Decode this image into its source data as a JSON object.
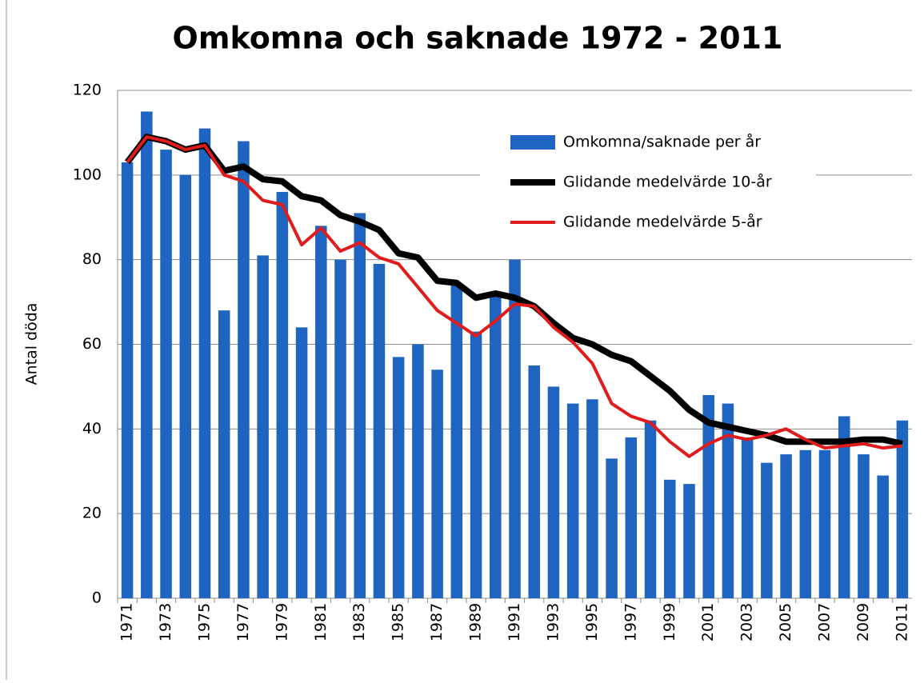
{
  "chart_data": {
    "type": "bar",
    "title": "Omkomna och saknade 1972 - 2011",
    "y_label": "Antal döda",
    "categories": [
      "1971",
      null,
      "1973",
      null,
      "1975",
      null,
      "1977",
      null,
      "1979",
      null,
      "1981",
      null,
      "1983",
      null,
      "1985",
      null,
      "1987",
      null,
      "1989",
      null,
      "1991",
      null,
      "1993",
      null,
      "1995",
      null,
      "1997",
      null,
      "1999",
      null,
      "2001",
      null,
      "2003",
      null,
      "2005",
      null,
      "2007",
      null,
      "2009",
      null,
      "2011"
    ],
    "series": [
      {
        "name": "Omkomna/saknade per år",
        "type": "bar",
        "color": "#1f64c0",
        "values": [
          103,
          115,
          106,
          100,
          111,
          68,
          108,
          81,
          96,
          64,
          88,
          80,
          91,
          79,
          57,
          60,
          54,
          74,
          63,
          72,
          80,
          55,
          50,
          46,
          47,
          33,
          38,
          42,
          28,
          27,
          48,
          46,
          38,
          32,
          34,
          35,
          35,
          43,
          34,
          29,
          42
        ]
      },
      {
        "name": "Glidande medelvärde 10-år",
        "type": "line",
        "color": "#000000",
        "values": [
          103,
          109,
          108,
          106,
          107,
          101,
          102,
          99,
          98.5,
          95,
          94,
          90.5,
          89,
          87,
          81.5,
          80.5,
          75,
          74.5,
          71,
          72,
          71,
          69,
          65,
          61.5,
          60,
          57.5,
          56,
          52.5,
          49,
          44.5,
          41.5,
          40.5,
          39.5,
          38.5,
          37,
          37,
          37,
          37,
          37.5,
          37.5,
          36.5
        ]
      },
      {
        "name": "Glidande medelvärde 5-år",
        "type": "line",
        "color": "#e01b1b",
        "values": [
          103,
          109,
          108,
          106,
          107,
          100,
          98.5,
          94,
          93,
          83.5,
          87.5,
          82,
          84,
          80.5,
          79,
          73.5,
          68,
          65,
          62,
          65.5,
          69.5,
          69,
          64,
          60.5,
          55.5,
          46,
          43,
          41.5,
          37,
          33.5,
          36.5,
          38.5,
          37.5,
          38.5,
          40,
          37.5,
          35.5,
          36,
          36.5,
          35.5,
          36
        ]
      }
    ],
    "ylim": [
      0,
      120
    ],
    "yticks": [
      0,
      20,
      40,
      60,
      80,
      100,
      120
    ],
    "grid": true,
    "legend": "top-right"
  }
}
